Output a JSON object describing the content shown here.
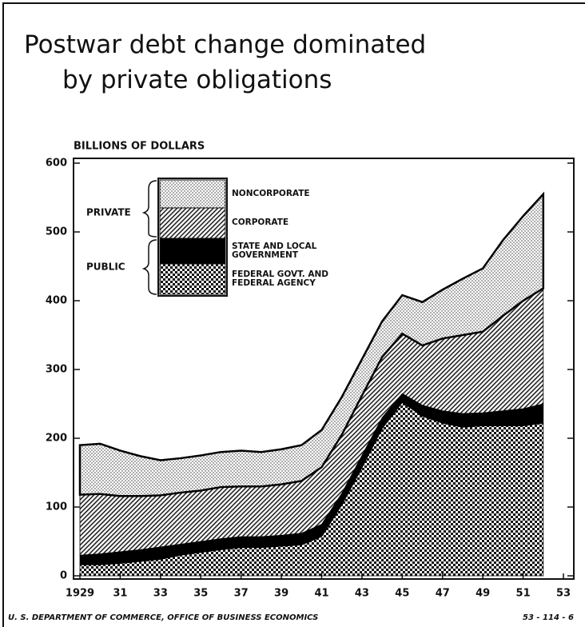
{
  "chart_data": {
    "type": "stacked_area",
    "title": "Postwar debt change dominated by private obligations",
    "y_axis_label": "BILLIONS OF DOLLARS",
    "source": "U. S. DEPARTMENT OF COMMERCE, OFFICE OF BUSINESS ECONOMICS",
    "chart_id": "53 - 114 - 6",
    "legend_groups": [
      "PRIVATE",
      "PUBLIC"
    ],
    "x": [
      1929,
      1930,
      1931,
      1932,
      1933,
      1934,
      1935,
      1936,
      1937,
      1938,
      1939,
      1940,
      1941,
      1942,
      1943,
      1944,
      1945,
      1946,
      1947,
      1948,
      1949,
      1950,
      1951,
      1952
    ],
    "series": [
      {
        "name": "FEDERAL GOVT. AND FEDERAL AGENCY",
        "color": "#000000",
        "values": [
          16,
          16,
          18,
          21,
          24,
          30,
          34,
          38,
          41,
          41,
          43,
          45,
          57,
          103,
          157,
          214,
          252,
          232,
          222,
          216,
          218,
          218,
          218,
          222
        ]
      },
      {
        "name": "STATE AND LOCAL GOVERNMENT",
        "color": "#000000",
        "values": [
          14,
          16,
          17,
          17,
          18,
          16,
          16,
          16,
          16,
          16,
          16,
          17,
          18,
          17,
          18,
          16,
          13,
          16,
          18,
          20,
          19,
          22,
          25,
          28
        ]
      },
      {
        "name": "CORPORATE",
        "color": "#000000",
        "values": [
          88,
          87,
          81,
          78,
          75,
          75,
          74,
          75,
          73,
          73,
          74,
          76,
          83,
          85,
          87,
          88,
          87,
          87,
          105,
          114,
          118,
          138,
          157,
          168
        ]
      },
      {
        "name": "NONCORPORATE",
        "color": "#000000",
        "values": [
          72,
          73,
          66,
          58,
          51,
          50,
          51,
          51,
          52,
          50,
          51,
          52,
          54,
          55,
          53,
          52,
          56,
          63,
          71,
          82,
          92,
          110,
          123,
          137
        ]
      }
    ],
    "xlim": [
      1929,
      1953
    ],
    "xticks": [
      1929,
      {
        "value": 1931,
        "label": "31"
      },
      {
        "value": 1933,
        "label": "33"
      },
      {
        "value": 1935,
        "label": "35"
      },
      {
        "value": 1937,
        "label": "37"
      },
      {
        "value": 1939,
        "label": "39"
      },
      {
        "value": 1941,
        "label": "41"
      },
      {
        "value": 1943,
        "label": "43"
      },
      {
        "value": 1945,
        "label": "45"
      },
      {
        "value": 1947,
        "label": "47"
      },
      {
        "value": 1949,
        "label": "49"
      },
      {
        "value": 1951,
        "label": "51"
      },
      {
        "value": 1953,
        "label": "53"
      }
    ],
    "ylim": [
      0,
      600
    ],
    "yticks": [
      0,
      100,
      200,
      300,
      400,
      500,
      600
    ]
  }
}
